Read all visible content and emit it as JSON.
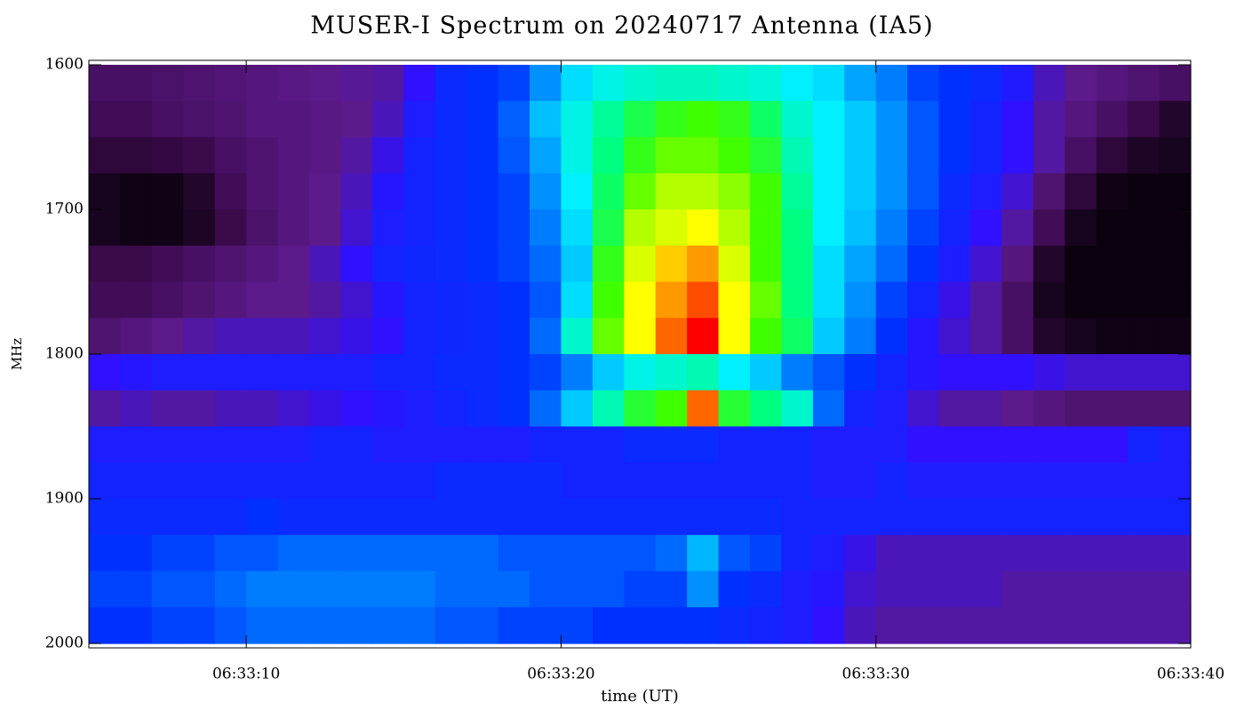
{
  "chart_data": {
    "type": "heatmap",
    "title": "MUSER-I Spectrum on 20240717 Antenna (IA5)",
    "xlabel": "time (UT)",
    "ylabel": "MHz",
    "xlim": [
      23585,
      23620
    ],
    "ylim": [
      1600,
      2000
    ],
    "y_reversed": true,
    "xticks": [
      {
        "value": 23590,
        "label": "06:33:10"
      },
      {
        "value": 23600,
        "label": "06:33:20"
      },
      {
        "value": 23610,
        "label": "06:33:30"
      },
      {
        "value": 23620,
        "label": "06:33:40"
      }
    ],
    "yticks": [
      1600,
      1700,
      1800,
      1900,
      2000
    ],
    "zlim": [
      0,
      100
    ],
    "colormap": [
      "#000000",
      "#3a0a4a",
      "#5c1a8a",
      "#3010ff",
      "#0030ff",
      "#0090ff",
      "#00f0ff",
      "#00ff80",
      "#40ff00",
      "#ffff00",
      "#ff0000"
    ],
    "x": [
      23585.5,
      23586.5,
      23587.5,
      23588.5,
      23589.5,
      23590.5,
      23591.5,
      23592.5,
      23593.5,
      23594.5,
      23595.5,
      23596.5,
      23597.5,
      23598.5,
      23599.5,
      23600.5,
      23601.5,
      23602.5,
      23603.5,
      23604.5,
      23605.5,
      23606.5,
      23607.5,
      23608.5,
      23609.5,
      23610.5,
      23611.5,
      23612.5,
      23613.5,
      23614.5,
      23615.5,
      23616.5,
      23617.5,
      23618.5,
      23619.5
    ],
    "y": [
      1612.5,
      1637.5,
      1662.5,
      1687.5,
      1712.5,
      1737.5,
      1762.5,
      1787.5,
      1812.5,
      1837.5,
      1862.5,
      1887.5,
      1912.5,
      1937.5,
      1962.5,
      1987.5
    ],
    "z": [
      [
        14,
        14,
        15,
        16,
        17,
        18,
        19,
        20,
        21,
        22,
        30,
        38,
        40,
        42,
        50,
        58,
        62,
        64,
        65,
        65,
        64,
        63,
        60,
        58,
        52,
        48,
        42,
        40,
        38,
        33,
        24,
        20,
        18,
        16,
        14
      ],
      [
        12,
        12,
        14,
        15,
        16,
        18,
        18,
        19,
        20,
        24,
        34,
        38,
        40,
        45,
        55,
        62,
        68,
        74,
        78,
        80,
        78,
        72,
        64,
        60,
        56,
        50,
        44,
        40,
        36,
        30,
        22,
        18,
        14,
        10,
        6
      ],
      [
        8,
        8,
        9,
        10,
        14,
        16,
        18,
        19,
        22,
        28,
        36,
        38,
        40,
        44,
        52,
        62,
        70,
        78,
        82,
        82,
        80,
        76,
        66,
        60,
        56,
        50,
        44,
        40,
        36,
        30,
        22,
        14,
        8,
        5,
        4
      ],
      [
        4,
        3,
        3,
        6,
        12,
        16,
        18,
        20,
        24,
        32,
        36,
        38,
        40,
        42,
        50,
        60,
        72,
        82,
        86,
        86,
        84,
        80,
        68,
        60,
        56,
        50,
        44,
        38,
        34,
        26,
        16,
        8,
        3,
        2,
        2
      ],
      [
        4,
        3,
        3,
        5,
        10,
        15,
        18,
        20,
        26,
        34,
        36,
        38,
        40,
        42,
        48,
        58,
        74,
        86,
        88,
        90,
        86,
        80,
        70,
        60,
        55,
        48,
        42,
        36,
        30,
        22,
        12,
        4,
        2,
        2,
        2
      ],
      [
        10,
        10,
        12,
        14,
        16,
        18,
        20,
        24,
        30,
        36,
        37,
        38,
        40,
        42,
        46,
        56,
        78,
        88,
        92,
        94,
        88,
        80,
        70,
        58,
        52,
        46,
        40,
        34,
        26,
        18,
        6,
        2,
        2,
        2,
        2
      ],
      [
        12,
        12,
        14,
        16,
        18,
        20,
        20,
        22,
        26,
        32,
        36,
        37,
        38,
        40,
        44,
        58,
        80,
        90,
        94,
        97,
        90,
        82,
        70,
        58,
        50,
        42,
        36,
        28,
        22,
        14,
        4,
        2,
        2,
        2,
        2
      ],
      [
        16,
        18,
        20,
        22,
        24,
        24,
        24,
        26,
        28,
        30,
        36,
        37,
        38,
        40,
        46,
        64,
        82,
        90,
        96,
        100,
        90,
        80,
        72,
        56,
        48,
        40,
        32,
        26,
        22,
        14,
        6,
        4,
        3,
        3,
        3
      ],
      [
        30,
        32,
        34,
        34,
        34,
        34,
        34,
        34,
        34,
        36,
        36,
        38,
        38,
        40,
        42,
        48,
        56,
        62,
        64,
        66,
        60,
        56,
        48,
        44,
        40,
        36,
        32,
        30,
        30,
        30,
        28,
        26,
        26,
        26,
        26
      ],
      [
        22,
        24,
        22,
        22,
        24,
        24,
        26,
        28,
        30,
        32,
        34,
        36,
        38,
        40,
        46,
        56,
        66,
        76,
        80,
        96,
        76,
        70,
        64,
        46,
        36,
        34,
        26,
        22,
        22,
        20,
        18,
        16,
        16,
        16,
        16
      ],
      [
        34,
        34,
        34,
        34,
        34,
        34,
        34,
        36,
        36,
        34,
        34,
        34,
        34,
        34,
        36,
        36,
        36,
        38,
        38,
        38,
        36,
        36,
        36,
        34,
        34,
        34,
        30,
        30,
        30,
        30,
        30,
        30,
        30,
        36,
        34
      ],
      [
        36,
        36,
        36,
        36,
        36,
        36,
        36,
        36,
        36,
        36,
        36,
        38,
        38,
        38,
        38,
        36,
        36,
        36,
        36,
        36,
        36,
        36,
        36,
        34,
        34,
        36,
        34,
        34,
        34,
        34,
        34,
        34,
        34,
        34,
        34
      ],
      [
        38,
        38,
        38,
        38,
        38,
        40,
        38,
        38,
        38,
        38,
        38,
        38,
        38,
        38,
        38,
        38,
        38,
        38,
        38,
        38,
        38,
        38,
        36,
        36,
        36,
        36,
        36,
        36,
        36,
        36,
        36,
        36,
        36,
        36,
        36
      ],
      [
        40,
        40,
        42,
        42,
        44,
        44,
        46,
        46,
        46,
        46,
        46,
        46,
        46,
        44,
        44,
        44,
        44,
        44,
        46,
        54,
        44,
        42,
        36,
        34,
        28,
        24,
        24,
        24,
        24,
        24,
        24,
        24,
        24,
        24,
        24
      ],
      [
        42,
        42,
        44,
        44,
        46,
        48,
        48,
        48,
        48,
        48,
        48,
        46,
        46,
        46,
        44,
        44,
        44,
        42,
        42,
        50,
        40,
        38,
        34,
        32,
        26,
        24,
        24,
        24,
        24,
        22,
        22,
        22,
        22,
        22,
        22
      ],
      [
        40,
        40,
        42,
        42,
        44,
        46,
        46,
        46,
        46,
        46,
        46,
        44,
        44,
        42,
        42,
        42,
        40,
        40,
        40,
        40,
        38,
        36,
        34,
        30,
        24,
        22,
        22,
        22,
        22,
        22,
        22,
        22,
        22,
        22,
        22
      ]
    ]
  }
}
